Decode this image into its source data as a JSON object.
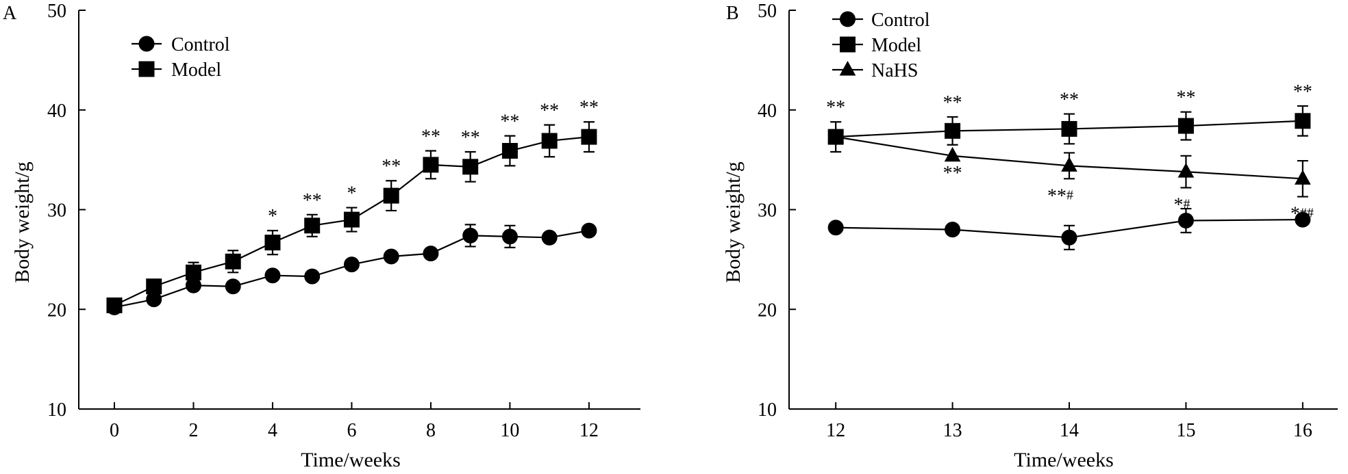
{
  "chart_data": [
    {
      "panel": "A",
      "type": "line",
      "xlabel": "Time/weeks",
      "ylabel": "Body weight/g",
      "xlim": [
        -0.9,
        13.3
      ],
      "ylim": [
        10,
        50
      ],
      "xticks": [
        0,
        2,
        4,
        6,
        8,
        10,
        12
      ],
      "yticks": [
        10,
        20,
        30,
        40,
        50
      ],
      "legend": "top-left",
      "series": [
        {
          "name": "Control",
          "marker": "circle",
          "x": [
            0,
            1,
            2,
            3,
            4,
            5,
            6,
            7,
            8,
            9,
            10,
            11,
            12
          ],
          "values": [
            20.2,
            21.0,
            22.4,
            22.3,
            23.4,
            23.3,
            24.5,
            25.3,
            25.6,
            27.4,
            27.3,
            27.2,
            27.9
          ],
          "errors": [
            0,
            0,
            0,
            0,
            0,
            0,
            0,
            0,
            0,
            1.1,
            1.1,
            0,
            0
          ]
        },
        {
          "name": "Model",
          "marker": "square",
          "x": [
            0,
            1,
            2,
            3,
            4,
            5,
            6,
            7,
            8,
            9,
            10,
            11,
            12
          ],
          "values": [
            20.4,
            22.3,
            23.7,
            24.8,
            26.7,
            28.4,
            29.0,
            31.4,
            34.5,
            34.3,
            35.9,
            36.9,
            37.3
          ],
          "errors": [
            0,
            0,
            1.0,
            1.1,
            1.2,
            1.1,
            1.2,
            1.5,
            1.4,
            1.5,
            1.5,
            1.6,
            1.5
          ]
        }
      ],
      "annotations": [
        {
          "x": 4,
          "text": "*",
          "series": "Model",
          "position": "above"
        },
        {
          "x": 5,
          "text": "**",
          "series": "Model",
          "position": "above"
        },
        {
          "x": 6,
          "text": "*",
          "series": "Model",
          "position": "above"
        },
        {
          "x": 7,
          "text": "**",
          "series": "Model",
          "position": "above"
        },
        {
          "x": 8,
          "text": "**",
          "series": "Model",
          "position": "above"
        },
        {
          "x": 9,
          "text": "**",
          "series": "Model",
          "position": "above"
        },
        {
          "x": 10,
          "text": "**",
          "series": "Model",
          "position": "above"
        },
        {
          "x": 11,
          "text": "**",
          "series": "Model",
          "position": "above"
        },
        {
          "x": 12,
          "text": "**",
          "series": "Model",
          "position": "above"
        }
      ]
    },
    {
      "panel": "B",
      "type": "line",
      "xlabel": "Time/weeks",
      "ylabel": "Body weight/g",
      "xlim": [
        11.6,
        16.3
      ],
      "ylim": [
        10,
        50
      ],
      "xticks": [
        12,
        13,
        14,
        15,
        16
      ],
      "yticks": [
        10,
        20,
        30,
        40,
        50
      ],
      "legend": "top-left",
      "series": [
        {
          "name": "Control",
          "marker": "circle",
          "x": [
            12,
            13,
            14,
            15,
            16
          ],
          "values": [
            28.2,
            28.0,
            27.2,
            28.9,
            29.0
          ],
          "errors": [
            0,
            0,
            1.2,
            1.2,
            0
          ]
        },
        {
          "name": "Model",
          "marker": "square",
          "x": [
            12,
            13,
            14,
            15,
            16
          ],
          "values": [
            37.3,
            37.9,
            38.1,
            38.4,
            38.9
          ],
          "errors": [
            1.5,
            1.4,
            1.5,
            1.4,
            1.5
          ]
        },
        {
          "name": "NaHS",
          "marker": "triangle",
          "x": [
            12,
            13,
            14,
            15,
            16
          ],
          "values": [
            37.3,
            35.4,
            34.4,
            33.8,
            33.1
          ],
          "errors": [
            0,
            0,
            1.3,
            1.6,
            1.8
          ]
        }
      ],
      "annotations": [
        {
          "x": 12,
          "text": "**",
          "series": "Model",
          "position": "above"
        },
        {
          "x": 13,
          "text": "**",
          "series": "Model",
          "position": "above"
        },
        {
          "x": 14,
          "text": "**",
          "series": "Model",
          "position": "above"
        },
        {
          "x": 15,
          "text": "**",
          "series": "Model",
          "position": "above"
        },
        {
          "x": 16,
          "text": "**",
          "series": "Model",
          "position": "above"
        },
        {
          "x": 13,
          "text": "**",
          "hash": "",
          "series": "NaHS",
          "position": "below"
        },
        {
          "x": 14,
          "text": "**",
          "hash": "#",
          "series": "NaHS",
          "position": "below"
        },
        {
          "x": 15,
          "text": "*",
          "hash": "#",
          "series": "NaHS",
          "position": "below"
        },
        {
          "x": 16,
          "text": "*",
          "hash": "##",
          "series": "NaHS",
          "position": "below"
        }
      ]
    }
  ]
}
